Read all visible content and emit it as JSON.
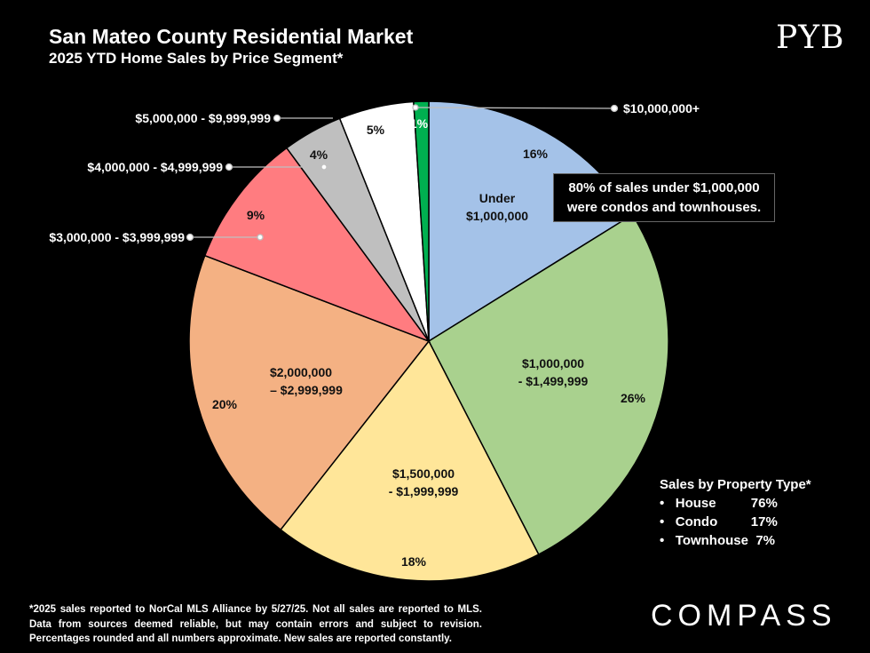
{
  "header": {
    "title": "San Mateo County Residential Market",
    "subtitle": "2025 YTD Home Sales by Price Segment*",
    "logo_pyb": "PYB"
  },
  "chart_data": {
    "type": "pie",
    "title": "2025 YTD Home Sales by Price Segment*",
    "start": "top",
    "direction": "clockwise",
    "slices": [
      {
        "label": "Under $1,000,000",
        "value": 16,
        "display": "16%",
        "color": "#a4c2e8"
      },
      {
        "label": "$1,000,000 - $1,499,999",
        "value": 26,
        "display": "26%",
        "color": "#a9d18e"
      },
      {
        "label": "$1,500,000 - $1,999,999",
        "value": 18,
        "display": "18%",
        "color": "#ffe699"
      },
      {
        "label": "$2,000,000 – $2,999,999",
        "value": 20,
        "display": "20%",
        "color": "#f4b183"
      },
      {
        "label": "$3,000,000 - $3,999,999",
        "value": 9,
        "display": "9%",
        "color": "#ff7c80"
      },
      {
        "label": "$4,000,000 - $4,999,999",
        "value": 4,
        "display": "4%",
        "color": "#bfbfbf"
      },
      {
        "label": "$5,000,000 - $9,999,999",
        "value": 5,
        "display": "5%",
        "color": "#ffffff"
      },
      {
        "label": "$10,000,000+",
        "value": 1,
        "display": "1%",
        "color": "#00b050"
      }
    ],
    "inner_labels": {
      "s0a": "Under",
      "s0b": "$1,000,000",
      "s1a": "$1,000,000",
      "s1b": "- $1,499,999",
      "s2a": "$1,500,000",
      "s2b": "- $1,999,999",
      "s3a": "$2,000,000",
      "s3b": "– $2,999,999"
    }
  },
  "callout": {
    "line1": "80% of sales under $1,000,000",
    "line2": "were condos and townhouses."
  },
  "property_type": {
    "title": "Sales by Property Type*",
    "items": [
      {
        "name": "House",
        "pct": "76%"
      },
      {
        "name": "Condo",
        "pct": "17%"
      },
      {
        "name": "Townhouse",
        "pct": "7%"
      }
    ]
  },
  "footnote": "*2025 sales reported to NorCal MLS Alliance by 5/27/25. Not all sales are reported to MLS. Data from sources deemed reliable, but may contain errors and subject to revision. Percentages rounded and all numbers approximate. New sales are reported constantly.",
  "logo_compass": "COMPASS"
}
